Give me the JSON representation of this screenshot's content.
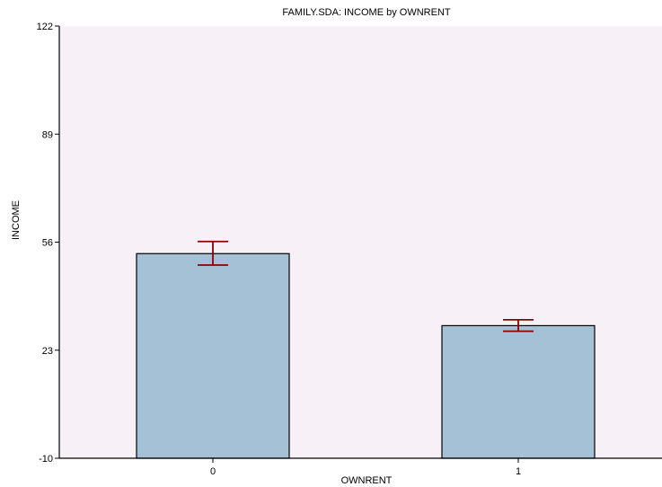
{
  "chart_data": {
    "type": "bar",
    "title": "FAMILY.SDA: INCOME by OWNRENT",
    "xlabel": "OWNRENT",
    "ylabel": "INCOME",
    "categories": [
      "0",
      "1"
    ],
    "values": [
      52.5,
      30.5
    ],
    "error_low": [
      49.0,
      28.8
    ],
    "error_high": [
      56.2,
      32.3
    ],
    "ylim": [
      -10,
      122
    ],
    "yticks": [
      -10,
      23,
      56,
      89,
      122
    ],
    "grid": false,
    "legend": "none"
  },
  "colors": {
    "plot_background": "#f7f0f7",
    "bar_fill": "#a5c1d6",
    "bar_stroke": "#000000",
    "error_bar": "#8b0000",
    "axis": "#000000"
  }
}
